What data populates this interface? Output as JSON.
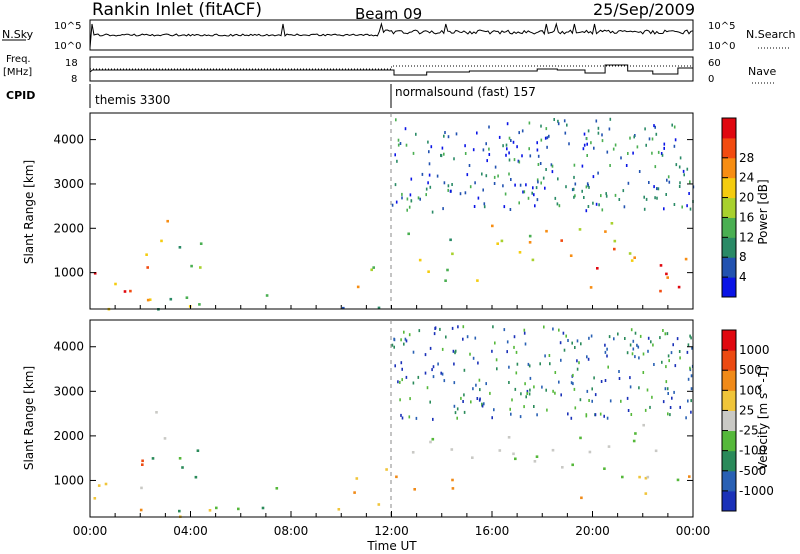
{
  "header": {
    "station": "Rankin Inlet (fitACF)",
    "beam": "Beam 09",
    "date": "25/Sep/2009"
  },
  "side_labels": {
    "nsky": "N.Sky",
    "nsearch": "N.Search",
    "freq_line1": "Freq.",
    "freq_line2": "[MHz]",
    "nave": "Nave",
    "cpid": "CPID"
  },
  "chart_data": [
    {
      "type": "line",
      "panel": "noise",
      "left_ticks": [
        "10^5",
        "10^0"
      ],
      "right_ticks": [
        "10^5",
        "10^0"
      ],
      "series": [
        {
          "name": "N.Sky",
          "style": "solid"
        },
        {
          "name": "N.Search",
          "style": "dotted"
        }
      ]
    },
    {
      "type": "line",
      "panel": "frequency",
      "left_ticks": [
        "18",
        "8"
      ],
      "right_ticks": [
        "60",
        "0"
      ],
      "series": [
        {
          "name": "Freq.",
          "style": "solid"
        },
        {
          "name": "Nave",
          "style": "dotted"
        }
      ]
    },
    {
      "type": "table",
      "panel": "cpid",
      "segments": [
        {
          "label": "themis 3300",
          "start_hour": 0,
          "end_hour": 12
        },
        {
          "label": "normalsound (fast) 157",
          "start_hour": 12,
          "end_hour": 24
        }
      ]
    },
    {
      "type": "heatmap",
      "panel": "power",
      "ylabel": "Slant Range [km]",
      "ylim": [
        180,
        4600
      ],
      "yticks": [
        1000,
        2000,
        3000,
        4000
      ],
      "colorbar_label": "Power [dB]",
      "colorbar_ticks": [
        4,
        8,
        12,
        16,
        20,
        24,
        28
      ],
      "colorbar_colors": [
        "#0a14e6",
        "#2252b0",
        "#2a8a66",
        "#4aaf52",
        "#a8d12e",
        "#f4cc0f",
        "#f78d12",
        "#f24b10",
        "#e00810"
      ]
    },
    {
      "type": "heatmap",
      "panel": "velocity",
      "ylabel": "Slant Range [km]",
      "ylim": [
        180,
        4600
      ],
      "yticks": [
        1000,
        2000,
        3000,
        4000
      ],
      "colorbar_label": "Velocity [m s^-1]",
      "colorbar_ticks": [
        "1000",
        "500",
        "100",
        "25",
        "-25",
        "-100",
        "-500",
        "-1000"
      ],
      "colorbar_colors": [
        "#1a31b8",
        "#2960b4",
        "#2a8a5a",
        "#55b83a",
        "#c9c9c5",
        "#f0c53a",
        "#f08a18",
        "#ec4a12",
        "#e00810"
      ]
    }
  ],
  "x_axis": {
    "label": "Time UT",
    "ticks": [
      "00:00",
      "04:00",
      "08:00",
      "12:00",
      "16:00",
      "20:00",
      "00:00"
    ],
    "range_hours": [
      0,
      24
    ]
  }
}
